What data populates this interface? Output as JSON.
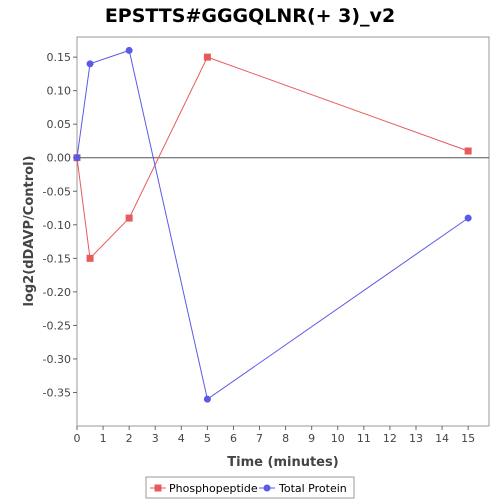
{
  "chart_data": {
    "type": "line",
    "title": "EPSTTS#GGGQLNR(+ 3)_v2",
    "xlabel": "Time (minutes)",
    "ylabel": "log2(dDAVP/Control)",
    "xlim": [
      0,
      15.8
    ],
    "ylim": [
      -0.4,
      0.18
    ],
    "x_ticks": [
      "0",
      "1",
      "2",
      "3",
      "4",
      "5",
      "6",
      "7",
      "8",
      "9",
      "10",
      "11",
      "12",
      "13",
      "14",
      "15"
    ],
    "y_ticks": [
      "0.15",
      "0.10",
      "0.05",
      "0.00",
      "-0.05",
      "-0.10",
      "-0.15",
      "-0.20",
      "-0.25",
      "-0.30",
      "-0.35"
    ],
    "legend_position": "bottom",
    "grid": false,
    "series": [
      {
        "name": "Phosphopeptide",
        "color": "#e85a5a",
        "marker": "square",
        "x": [
          0,
          0.5,
          2,
          5,
          15
        ],
        "y": [
          0.0,
          -0.15,
          -0.09,
          0.15,
          0.01
        ]
      },
      {
        "name": "Total Protein",
        "color": "#5a5ae8",
        "marker": "circle",
        "x": [
          0,
          0.5,
          2,
          5,
          15
        ],
        "y": [
          0.0,
          0.14,
          0.16,
          -0.36,
          -0.09
        ]
      }
    ]
  }
}
